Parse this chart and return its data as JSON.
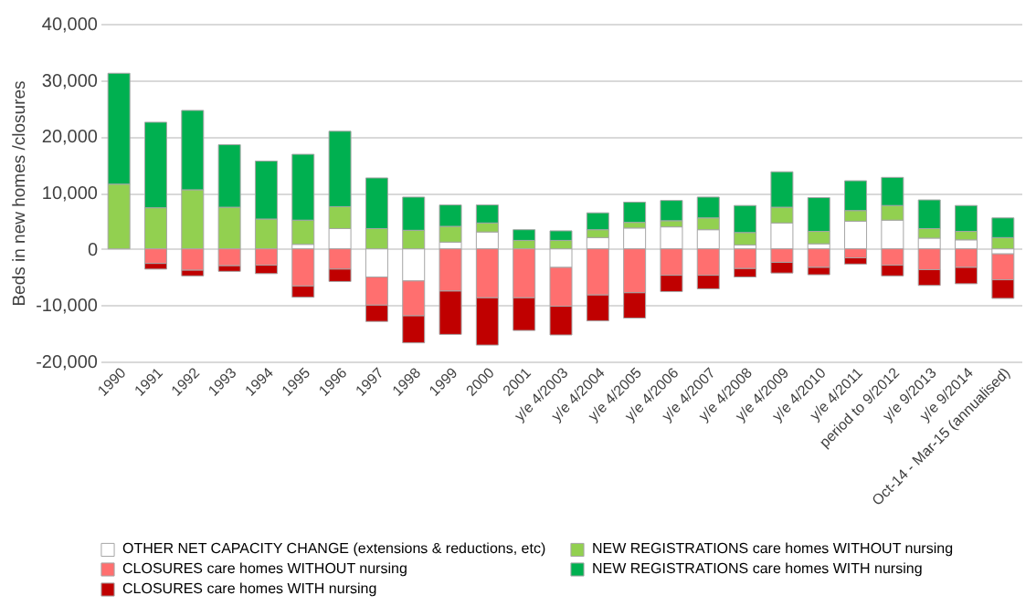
{
  "chart_data": {
    "type": "bar",
    "stacked": true,
    "ylabel": "Beds in new homes /closures",
    "categories": [
      "1990",
      "1991",
      "1992",
      "1993",
      "1994",
      "1995",
      "1996",
      "1997",
      "1998",
      "1999",
      "2000",
      "2001",
      "y/e 4/2003",
      "y/e 4/2004",
      "y/e 4/2005",
      "y/e 4/2006",
      "y/e 4/2007",
      "y/e 4/2008",
      "y/e 4/2009",
      "y/e 4/2010",
      "y/e 4/2011",
      "period to 9/2012",
      "y/e 9/2013",
      "y/e 9/2014",
      "Oct-14 - Mar-15 (annualised)"
    ],
    "series": [
      {
        "name": "OTHER NET CAPACITY CHANGE (extensions & reductions, etc)",
        "color": "#ffffff",
        "values": [
          null,
          null,
          null,
          null,
          null,
          800,
          3600,
          -5000,
          -5700,
          1200,
          3000,
          null,
          -3300,
          2000,
          3700,
          3900,
          3400,
          700,
          4600,
          900,
          4900,
          5100,
          1900,
          1600,
          -900
        ]
      },
      {
        "name": "NEW REGISTRATIONS care homes WITHOUT nursing",
        "color": "#92d050",
        "values": [
          11500,
          7300,
          10500,
          7400,
          5300,
          4300,
          3900,
          3600,
          3300,
          2800,
          1600,
          1500,
          1500,
          1400,
          1000,
          1100,
          2100,
          2200,
          2800,
          2200,
          1900,
          2600,
          1700,
          1500,
          2000
        ]
      },
      {
        "name": "CLOSURES care homes WITHOUT nursing",
        "color": "#ff6f6f",
        "values": [
          null,
          -2600,
          -3800,
          -3000,
          -2900,
          -6600,
          -3600,
          -5000,
          -6200,
          -7500,
          -8700,
          -8700,
          -6900,
          -8200,
          -7800,
          -4700,
          -4700,
          -3500,
          -2400,
          -3300,
          -1600,
          -2900,
          -3700,
          -3300,
          -4600
        ]
      },
      {
        "name": "NEW REGISTRATIONS care homes WITH nursing",
        "color": "#00b050",
        "values": [
          19700,
          15200,
          14100,
          11100,
          10300,
          11700,
          13400,
          9000,
          5900,
          3800,
          3200,
          1900,
          1700,
          3000,
          3600,
          3600,
          3700,
          4800,
          6300,
          6000,
          5300,
          5000,
          5100,
          4600,
          3500
        ]
      },
      {
        "name": "CLOSURES care homes WITH nursing",
        "color": "#c00000",
        "values": [
          null,
          -1000,
          -1000,
          -1000,
          -1500,
          -2000,
          -2200,
          -2900,
          -4800,
          -7700,
          -8400,
          -5800,
          -5100,
          -4600,
          -4500,
          -2900,
          -2400,
          -1500,
          -1900,
          -1300,
          -1100,
          -1900,
          -2800,
          -2900,
          -3300
        ]
      }
    ],
    "ylim": [
      -20000,
      40000
    ],
    "yticks": [
      {
        "value": -20000,
        "label": "-20,000"
      },
      {
        "value": -10000,
        "label": "-10,000"
      },
      0,
      {
        "value": 10000,
        "label": "10,000"
      },
      {
        "value": 20000,
        "label": "20,000"
      },
      {
        "value": 30000,
        "label": "30,000"
      },
      {
        "value": 40000,
        "label": "40,000"
      }
    ],
    "grid": "y",
    "legend": "bottom"
  }
}
